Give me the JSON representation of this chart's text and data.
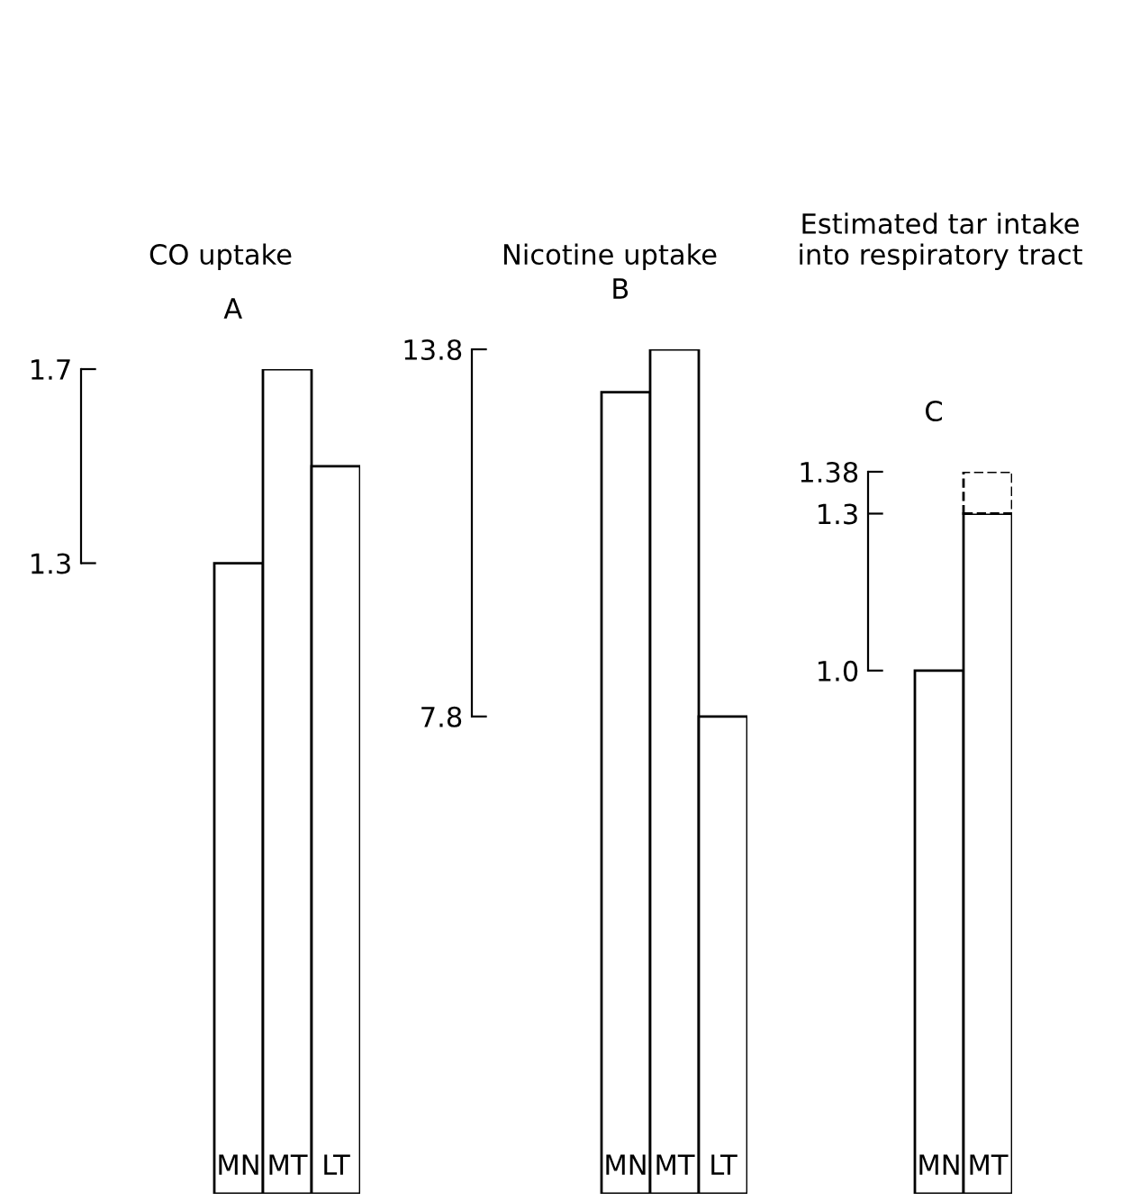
{
  "chart_data": [
    {
      "type": "bar",
      "title": "CO uptake",
      "annotations": [
        "A"
      ],
      "categories": [
        "MN",
        "MT",
        "LT"
      ],
      "series": [
        {
          "color": "#ffffff",
          "values": [
            1.3,
            1.7,
            1.5
          ]
        }
      ],
      "ylim": [
        0,
        1.7
      ],
      "yticks": [
        1.3,
        1.7
      ],
      "grid": false,
      "legend": false
    },
    {
      "type": "bar",
      "title": "Nicotine uptake",
      "annotations": [
        "B"
      ],
      "categories": [
        "MN",
        "MT",
        "LT"
      ],
      "series": [
        {
          "color": "#ffffff",
          "values": [
            13.1,
            13.8,
            7.8
          ]
        }
      ],
      "ylim": [
        0,
        13.8
      ],
      "yticks": [
        7.8,
        13.8
      ],
      "grid": false,
      "legend": false
    },
    {
      "type": "bar",
      "title": "Estimated tar intake\ninto respiratory tract",
      "annotations": [
        "C"
      ],
      "categories": [
        "MN",
        "MT"
      ],
      "stacked": true,
      "series": [
        {
          "color": "#ffffff",
          "values": [
            1.0,
            1.3
          ]
        },
        {
          "color": "#ffffff",
          "values": [
            null,
            0.08
          ],
          "line_style": "dashed"
        }
      ],
      "ylim": [
        0,
        1.38
      ],
      "yticks": [
        {
          "value": 1.0,
          "label": "1.0"
        },
        1.3,
        1.38
      ],
      "grid": false,
      "legend": false
    }
  ]
}
